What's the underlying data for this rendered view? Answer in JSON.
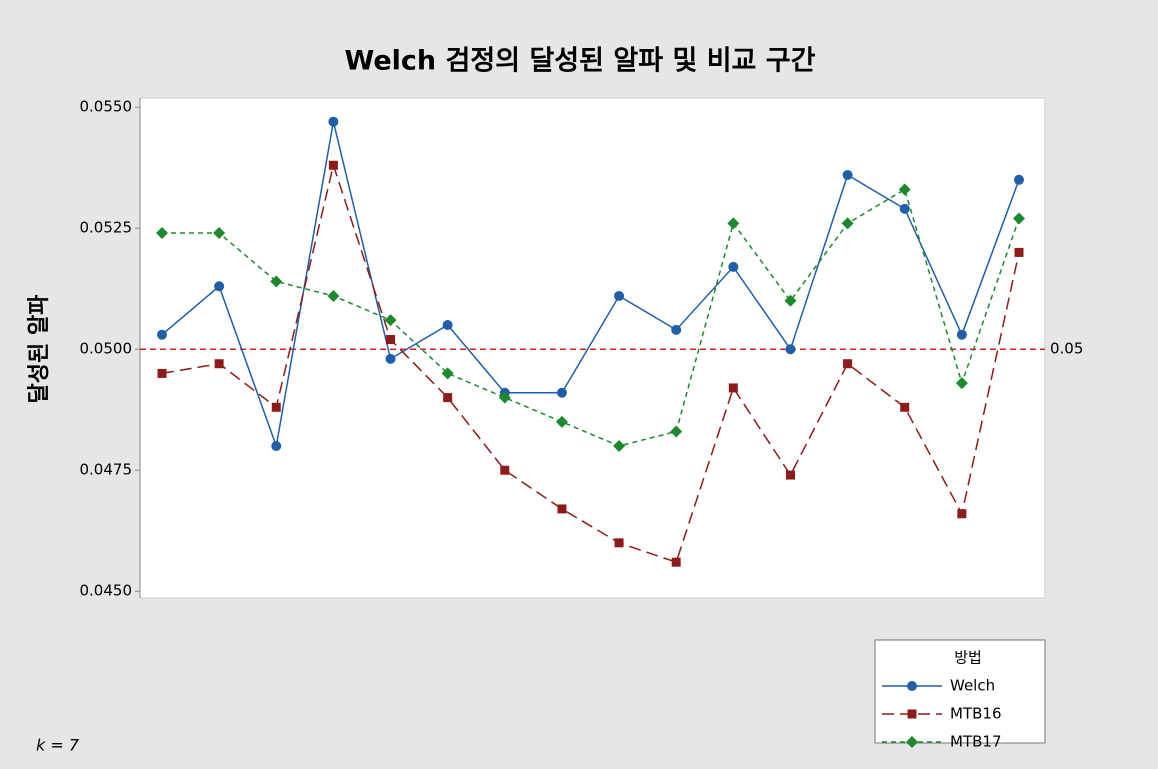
{
  "chart_data": {
    "type": "line",
    "title": "Welch 검정의 달성된 알파 및 비교 구간",
    "y_label": "달성된 알파",
    "annotation": "k = 7",
    "categories": [
      null,
      null,
      null,
      null,
      null,
      null,
      null,
      null,
      null,
      null,
      null,
      null,
      null,
      null,
      null,
      null
    ],
    "series": [
      {
        "name": "Welch",
        "color": "#1f5ea8",
        "marker": "circle",
        "dash": "solid",
        "values": [
          0.0503,
          0.0513,
          0.048,
          0.0547,
          0.0498,
          0.0505,
          0.0491,
          0.0491,
          0.0511,
          0.0504,
          0.0517,
          0.05,
          0.0536,
          0.0529,
          0.0503,
          0.0535
        ]
      },
      {
        "name": "MTB16",
        "color": "#8e1a1a",
        "marker": "square",
        "dash": "long",
        "values": [
          0.0495,
          0.0497,
          0.0488,
          0.0538,
          0.0502,
          0.049,
          0.0475,
          0.0467,
          0.046,
          0.0456,
          0.0492,
          0.0474,
          0.0497,
          0.0488,
          0.0466,
          0.052
        ]
      },
      {
        "name": "MTB17",
        "color": "#1c8a2c",
        "marker": "diamond",
        "dash": "short",
        "values": [
          0.0524,
          0.0524,
          0.0514,
          0.0511,
          0.0506,
          0.0495,
          0.049,
          0.0485,
          0.048,
          0.0483,
          0.0526,
          0.051,
          0.0526,
          0.0533,
          0.0493,
          0.0527
        ]
      }
    ],
    "reference_line": {
      "value": 0.05,
      "color": "#d42020"
    },
    "ylim": [
      0.04486,
      0.05519
    ],
    "yticks": [
      {
        "value": 0.045,
        "label": "0.0450"
      },
      {
        "value": 0.0475,
        "label": "0.0475"
      },
      {
        "value": 0.05,
        "label": "0.0500"
      },
      {
        "value": 0.0525,
        "label": "0.0525"
      },
      {
        "value": 0.055,
        "label": "0.0550"
      }
    ],
    "legend": {
      "title": "방법",
      "position": "bottom-right"
    }
  }
}
